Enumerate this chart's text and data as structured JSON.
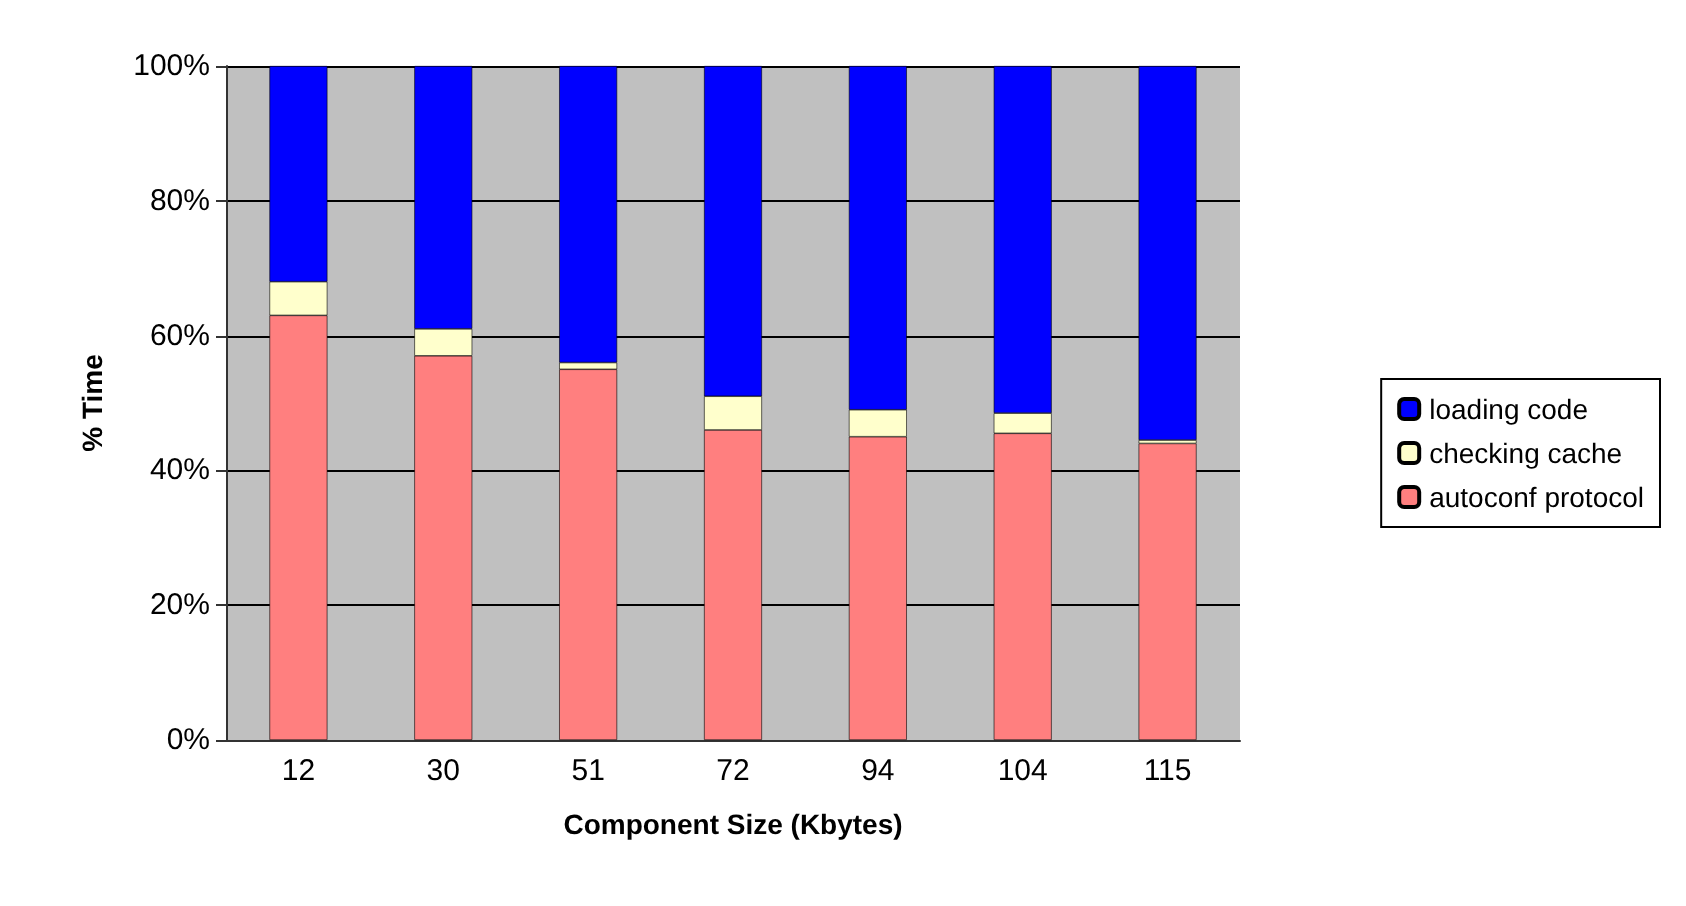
{
  "chart_data": {
    "type": "bar",
    "stacked": true,
    "xlabel": "Component Size (Kbytes)",
    "ylabel": "% Time",
    "categories": [
      "12",
      "30",
      "51",
      "72",
      "94",
      "104",
      "115"
    ],
    "series": [
      {
        "name": "autoconf protocol",
        "color": "#ff7f7f",
        "values": [
          63,
          57,
          55,
          46,
          45,
          45.5,
          44
        ]
      },
      {
        "name": "checking cache",
        "color": "#ffffcc",
        "values": [
          5,
          4,
          1,
          5,
          4,
          3,
          0.5
        ]
      },
      {
        "name": "loading code",
        "color": "#0000ff",
        "values": [
          32,
          39,
          44,
          49,
          51,
          51.5,
          55.5
        ]
      }
    ],
    "ylim": [
      0,
      100
    ],
    "yticks": [
      {
        "value": 0,
        "label": "0%"
      },
      {
        "value": 20,
        "label": "20%"
      },
      {
        "value": 40,
        "label": "40%"
      },
      {
        "value": 60,
        "label": "60%"
      },
      {
        "value": 80,
        "label": "80%"
      },
      {
        "value": 100,
        "label": "100%"
      }
    ],
    "grid": "y",
    "legend": "right"
  }
}
